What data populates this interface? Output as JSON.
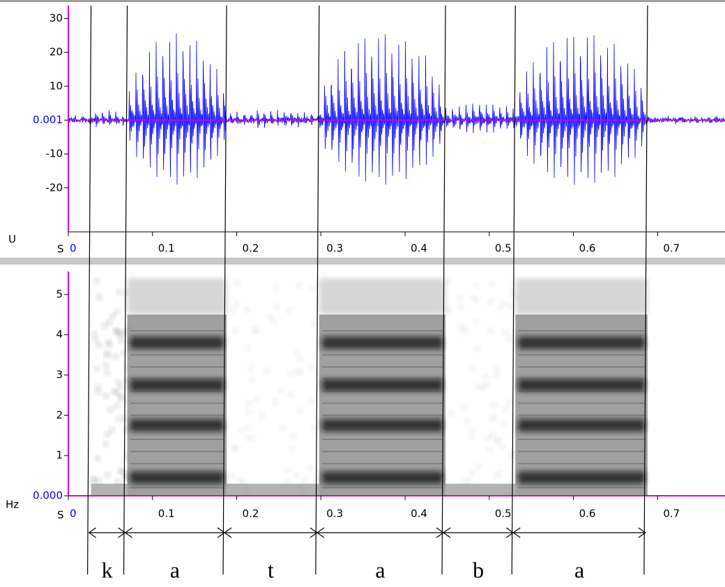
{
  "waveform": {
    "y_unit": "U",
    "x_unit": "S",
    "ylim": [
      -33,
      33
    ],
    "yticks": [
      30,
      20,
      10,
      0.001,
      -10,
      -20
    ],
    "xlim": [
      0,
      0.78
    ],
    "xticks": [
      0,
      0.1,
      0.2,
      0.3,
      0.4,
      0.5,
      0.6,
      0.7
    ]
  },
  "spectrogram": {
    "y_unit": "Hz",
    "x_unit": "S",
    "ylim": [
      0,
      5.5
    ],
    "yticks": [
      5,
      4,
      3,
      2,
      1,
      {
        "value": 0,
        "label": "0.000"
      }
    ],
    "xlim": [
      0,
      0.78
    ],
    "xticks": [
      0,
      0.1,
      0.2,
      0.3,
      0.4,
      0.5,
      0.6,
      0.7
    ]
  },
  "segments": [
    {
      "label": "k",
      "start": 0.027,
      "end": 0.07
    },
    {
      "label": "a",
      "start": 0.07,
      "end": 0.188
    },
    {
      "label": "t",
      "start": 0.188,
      "end": 0.298
    },
    {
      "label": "a",
      "start": 0.298,
      "end": 0.448
    },
    {
      "label": "b",
      "start": 0.448,
      "end": 0.531
    },
    {
      "label": "a",
      "start": 0.531,
      "end": 0.688
    }
  ]
}
